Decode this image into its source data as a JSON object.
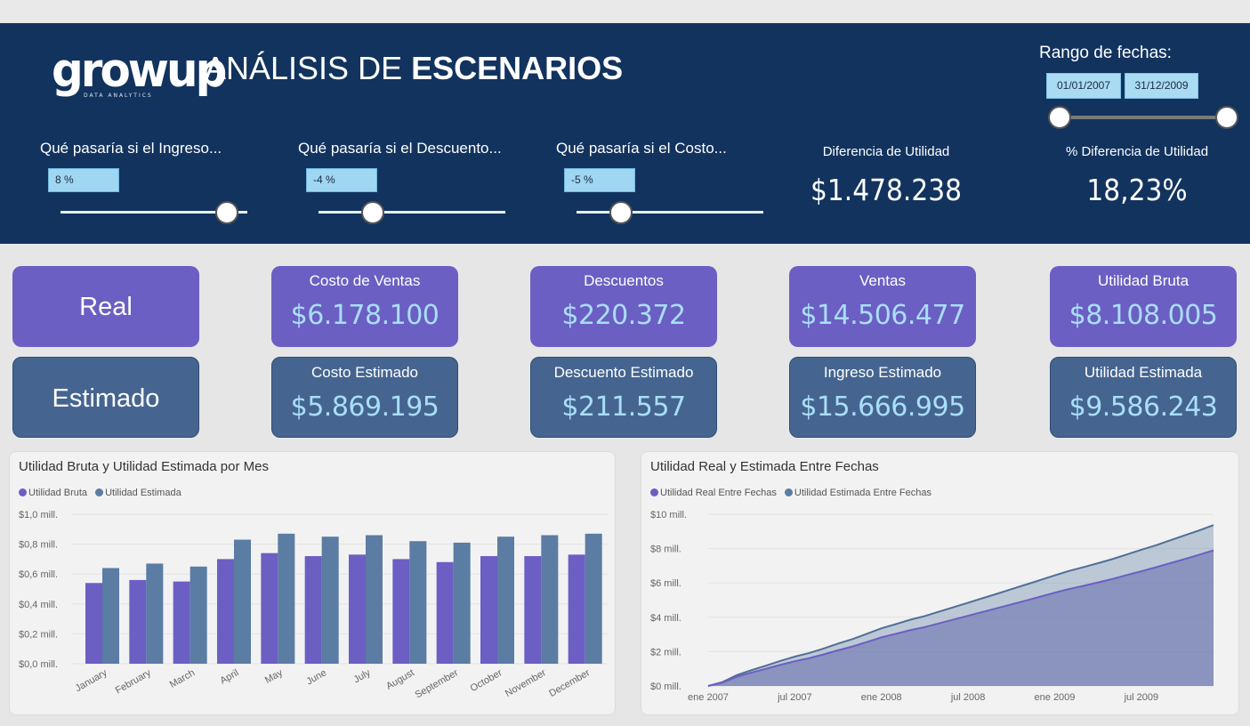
{
  "header": {
    "logo_text": "growup",
    "logo_sub": "DATA ANALYTICS",
    "title_light": "ANÁLISIS DE ",
    "title_bold": "ESCENARIOS",
    "date_range": {
      "label": "Rango de fechas:",
      "start": "01/01/2007",
      "end": "31/12/2009"
    },
    "sliders": [
      {
        "label": "Qué pasaría si el Ingreso...",
        "value": "8 %",
        "position": 0.89
      },
      {
        "label": "Qué pasaría si el Descuento...",
        "value": "-4 %",
        "position": 0.29
      },
      {
        "label": "Qué pasaría si el Costo...",
        "value": "-5 %",
        "position": 0.24
      }
    ],
    "kpis": [
      {
        "label": "Diferencia de Utilidad",
        "value": "$1.478.238"
      },
      {
        "label": "% Diferencia de Utilidad",
        "value": "18,23%"
      }
    ]
  },
  "cards": {
    "real_label": "Real",
    "est_label": "Estimado",
    "real": [
      {
        "label": "Costo de Ventas",
        "value": "$6.178.100"
      },
      {
        "label": "Descuentos",
        "value": "$220.372"
      },
      {
        "label": "Ventas",
        "value": "$14.506.477"
      },
      {
        "label": "Utilidad Bruta",
        "value": "$8.108.005"
      }
    ],
    "estimated": [
      {
        "label": "Costo Estimado",
        "value": "$5.869.195"
      },
      {
        "label": "Descuento Estimado",
        "value": "$211.557"
      },
      {
        "label": "Ingreso Estimado",
        "value": "$15.666.995"
      },
      {
        "label": "Utilidad Estimada",
        "value": "$9.586.243"
      }
    ]
  },
  "colors": {
    "real": "#6b5fc3",
    "estimated": "#5b7ca3",
    "header": "#12335e",
    "card_est": "#456590",
    "value_text": "#a9def7"
  },
  "chart_data": [
    {
      "type": "bar",
      "title": "Utilidad Bruta y Utilidad Estimada por Mes",
      "categories": [
        "January",
        "February",
        "March",
        "April",
        "May",
        "June",
        "July",
        "August",
        "September",
        "October",
        "November",
        "December"
      ],
      "series": [
        {
          "name": "Utilidad Bruta",
          "values": [
            0.54,
            0.56,
            0.55,
            0.7,
            0.74,
            0.72,
            0.73,
            0.7,
            0.68,
            0.72,
            0.72,
            0.73
          ]
        },
        {
          "name": "Utilidad Estimada",
          "values": [
            0.64,
            0.67,
            0.65,
            0.83,
            0.87,
            0.85,
            0.86,
            0.82,
            0.81,
            0.85,
            0.86,
            0.87
          ]
        }
      ],
      "yticks": [
        "$0,0 mill.",
        "$0,2 mill.",
        "$0,4 mill.",
        "$0,6 mill.",
        "$0,8 mill.",
        "$1,0 mill."
      ],
      "ylim": [
        0,
        1.0
      ],
      "legend": "top-left",
      "grid": true
    },
    {
      "type": "area",
      "title": "Utilidad Real y Estimada Entre Fechas",
      "x": [
        0,
        1,
        2,
        3,
        4,
        5,
        6,
        7,
        8,
        9,
        10,
        11,
        12,
        13,
        14,
        15,
        16,
        17,
        18,
        19,
        20,
        21,
        22,
        23,
        24,
        25,
        26,
        27,
        28,
        29,
        30,
        31,
        32,
        33,
        34,
        35
      ],
      "series": [
        {
          "name": "Utilidad Real Entre Fechas",
          "values": [
            0,
            0.2,
            0.54,
            0.78,
            1.0,
            1.23,
            1.44,
            1.62,
            1.84,
            2.08,
            2.3,
            2.56,
            2.83,
            3.04,
            3.25,
            3.43,
            3.65,
            3.87,
            4.09,
            4.31,
            4.53,
            4.75,
            4.97,
            5.2,
            5.43,
            5.65,
            5.83,
            6.03,
            6.23,
            6.46,
            6.68,
            6.91,
            7.15,
            7.39,
            7.64,
            7.9
          ]
        },
        {
          "name": "Utilidad Estimada Entre Fechas",
          "values": [
            0,
            0.23,
            0.64,
            0.92,
            1.18,
            1.46,
            1.71,
            1.92,
            2.18,
            2.47,
            2.73,
            3.04,
            3.36,
            3.6,
            3.86,
            4.07,
            4.33,
            4.59,
            4.85,
            5.11,
            5.37,
            5.64,
            5.9,
            6.17,
            6.44,
            6.7,
            6.92,
            7.15,
            7.39,
            7.66,
            7.93,
            8.19,
            8.48,
            8.77,
            9.06,
            9.37
          ]
        }
      ],
      "xticks": [
        "ene 2007",
        "jul 2007",
        "ene 2008",
        "jul 2008",
        "ene 2009",
        "jul 2009"
      ],
      "yticks": [
        "$0 mill.",
        "$2 mill.",
        "$4 mill.",
        "$6 mill.",
        "$8 mill.",
        "$10 mill."
      ],
      "ylim": [
        0,
        10
      ],
      "legend": "top-left",
      "grid": true
    }
  ]
}
